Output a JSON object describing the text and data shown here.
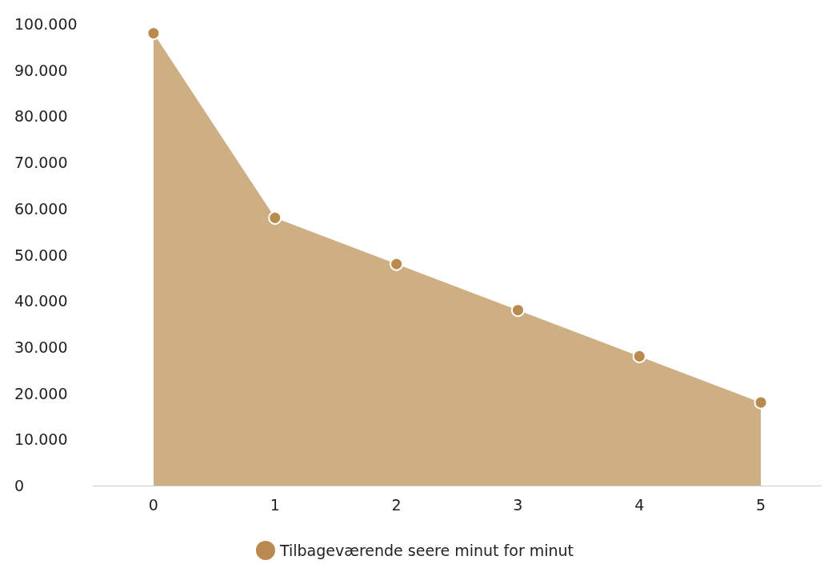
{
  "chart_data": {
    "type": "area",
    "categories": [
      "0",
      "1",
      "2",
      "3",
      "4",
      "5"
    ],
    "series": [
      {
        "name": "Tilbageværende seere minut for minut",
        "color": "#b98b4e",
        "values": [
          98000,
          58000,
          48000,
          38000,
          28000,
          18000
        ]
      }
    ],
    "ylim": [
      0,
      100000
    ],
    "yticks": [
      {
        "value": 0,
        "label": "0"
      },
      {
        "value": 10000,
        "label": "10.000"
      },
      {
        "value": 20000,
        "label": "20.000"
      },
      {
        "value": 30000,
        "label": "30.000"
      },
      {
        "value": 40000,
        "label": "40.000"
      },
      {
        "value": 50000,
        "label": "50.000"
      },
      {
        "value": 60000,
        "label": "60.000"
      },
      {
        "value": 70000,
        "label": "70.000"
      },
      {
        "value": 80000,
        "label": "80.000"
      },
      {
        "value": 90000,
        "label": "90.000"
      },
      {
        "value": 100000,
        "label": "100.000"
      }
    ],
    "grid": false,
    "legend": "bottom",
    "marker": "circle"
  }
}
